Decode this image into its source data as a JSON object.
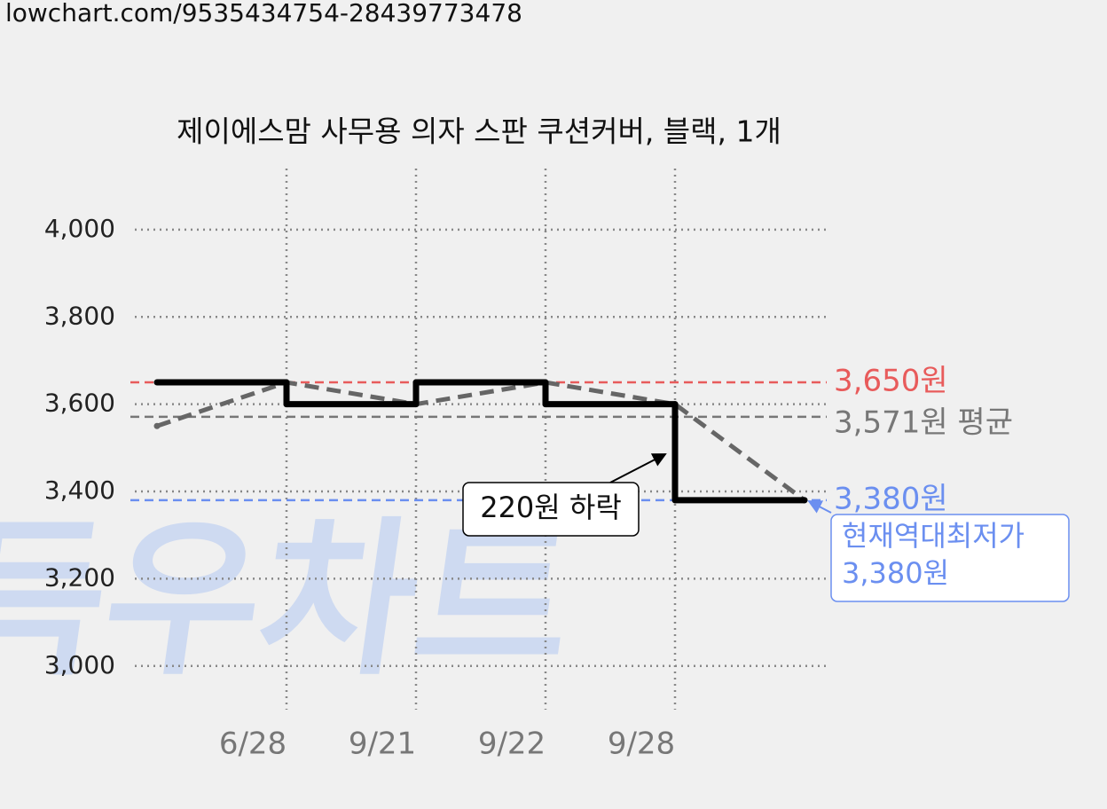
{
  "url": "lowchart.com/9535434754-28439773478",
  "chart_data": {
    "type": "line",
    "title": "제이에스맘 사무용 의자 스판 쿠션커버, 블랙, 1개",
    "watermark": "득우차트",
    "categories": [
      null,
      "6/28",
      "9/21",
      "9/22",
      "9/28",
      null
    ],
    "series": [
      {
        "color": "#666666",
        "line_style": "dashed",
        "values": [
          3550,
          3650,
          3600,
          3650,
          3600,
          3380
        ]
      },
      {
        "color": "#000000",
        "line_style": "step",
        "values": [
          3650,
          3600,
          3650,
          3600,
          3380,
          3380
        ]
      }
    ],
    "ylim": [
      2900,
      4140
    ],
    "yticks": [
      {
        "value": 3000,
        "label": "3,000"
      },
      {
        "value": 3200,
        "label": "3,200"
      },
      {
        "value": 3400,
        "label": "3,400"
      },
      {
        "value": 3600,
        "label": "3,600"
      },
      {
        "value": 3800,
        "label": "3,800"
      },
      {
        "value": 4000,
        "label": "4,000"
      }
    ],
    "grid": true,
    "reference_lines": [
      {
        "value": 3650,
        "label": "3,650원",
        "color": "#e85b5b"
      },
      {
        "value": 3571,
        "label": "3,571원 평균",
        "color": "#777777"
      },
      {
        "value": 3380,
        "label": "3,380원",
        "color": "#6b8ff0"
      }
    ],
    "annotations": [
      {
        "text": [
          "220원 하락"
        ],
        "color": "#000000"
      },
      {
        "text": [
          "현재역대최저가",
          "3,380원"
        ],
        "color": "#6b8ff0"
      }
    ]
  }
}
